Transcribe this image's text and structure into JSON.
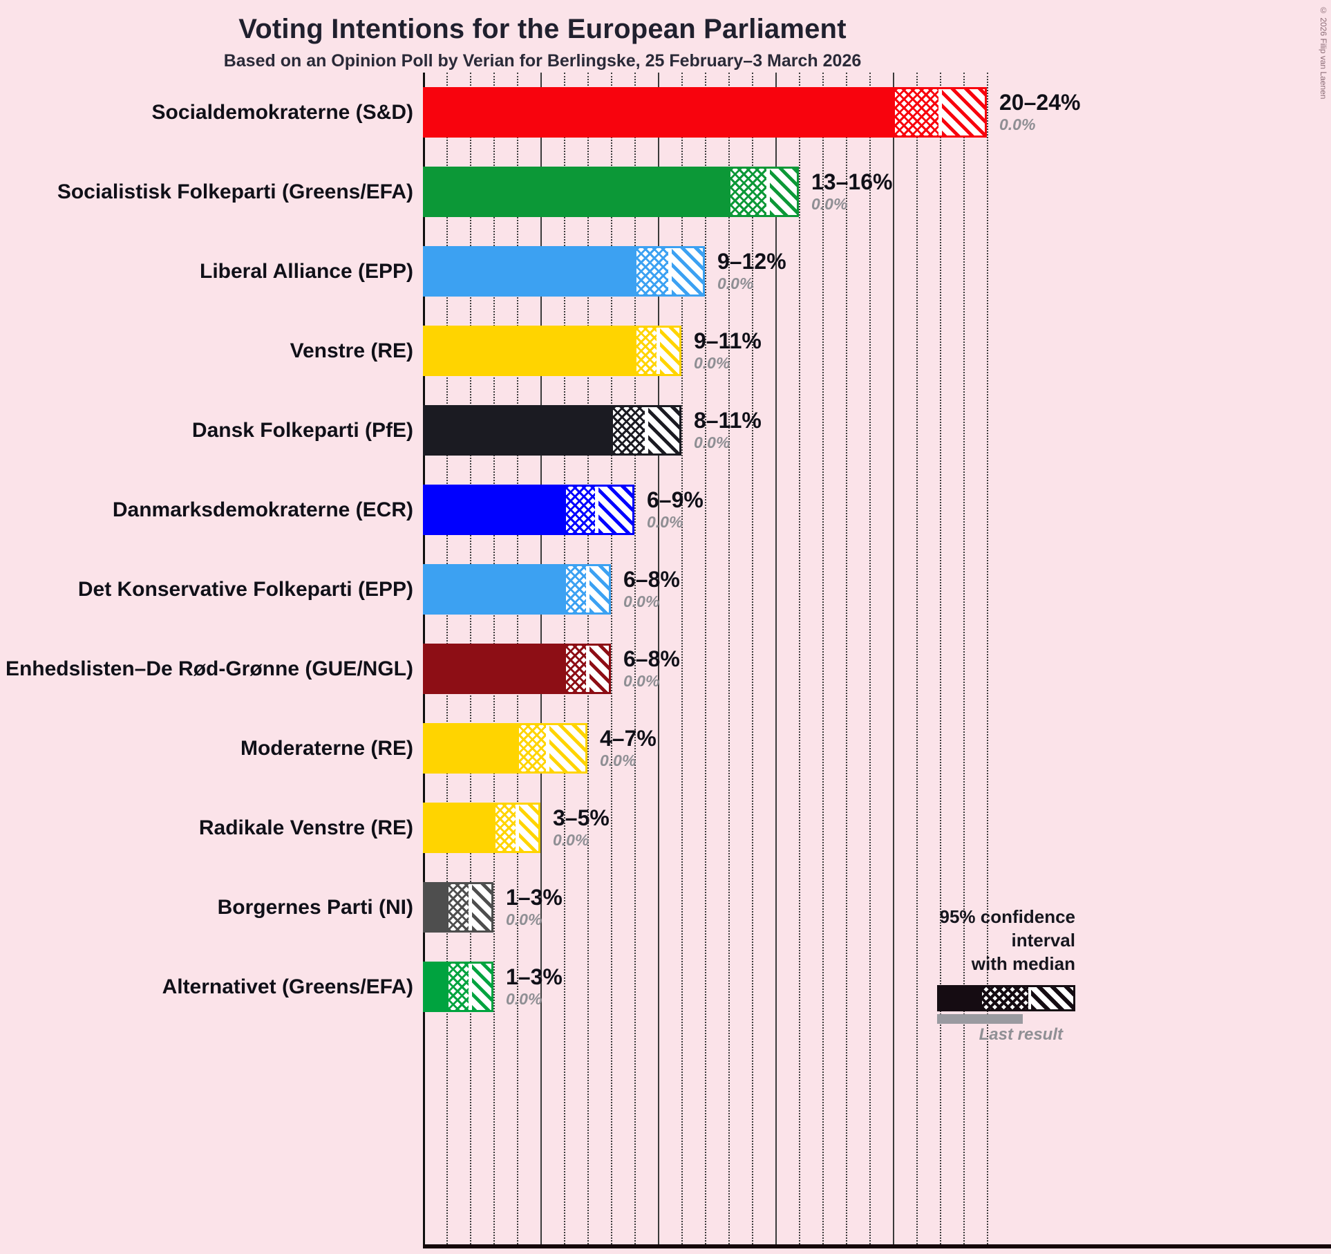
{
  "title": "Voting Intentions for the European Parliament",
  "subtitle": "Based on an Opinion Poll by Verian for Berlingske, 25 February–3 March 2026",
  "copyright": "© 2026 Filip van Laenen",
  "legend": {
    "ci_line1": "95% confidence interval",
    "ci_line2": "with median",
    "last_result": "Last result"
  },
  "chart_data": {
    "type": "bar",
    "title": "Voting Intentions for the European Parliament",
    "subtitle": "Based on an Opinion Poll by Verian for Berlingske, 25 February–3 March 2026",
    "unit": "%",
    "xlim": [
      0,
      24
    ],
    "gridline_step": 1,
    "major_gridline_step": 5,
    "orientation": "horizontal",
    "note": "Bars show 95% confidence interval with median; solid = lower bound, crosshatch = lower bound to median, diagonal = median to upper bound",
    "parties": [
      {
        "label": "Socialdemokraterne (S&D)",
        "low": 20,
        "median": 22,
        "high": 24,
        "range_label": "20–24%",
        "last_result": 0.0,
        "last_result_label": "0.0%",
        "color": "#F8030D"
      },
      {
        "label": "Socialistisk Folkeparti (Greens/EFA)",
        "low": 13,
        "median": 14.7,
        "high": 16,
        "range_label": "13–16%",
        "last_result": 0.0,
        "last_result_label": "0.0%",
        "color": "#0C9837"
      },
      {
        "label": "Liberal Alliance (EPP)",
        "low": 9,
        "median": 10.5,
        "high": 12,
        "range_label": "9–12%",
        "last_result": 0.0,
        "last_result_label": "0.0%",
        "color": "#3CA1F2"
      },
      {
        "label": "Venstre (RE)",
        "low": 9,
        "median": 10,
        "high": 11,
        "range_label": "9–11%",
        "last_result": 0.0,
        "last_result_label": "0.0%",
        "color": "#FFD400"
      },
      {
        "label": "Dansk Folkeparti (PfE)",
        "low": 8,
        "median": 9.5,
        "high": 11,
        "range_label": "8–11%",
        "last_result": 0.0,
        "last_result_label": "0.0%",
        "color": "#1B1B22"
      },
      {
        "label": "Danmarksdemokraterne (ECR)",
        "low": 6,
        "median": 7.4,
        "high": 9,
        "range_label": "6–9%",
        "last_result": 0.0,
        "last_result_label": "0.0%",
        "color": "#0000FF"
      },
      {
        "label": "Det Konservative Folkeparti (EPP)",
        "low": 6,
        "median": 7,
        "high": 8,
        "range_label": "6–8%",
        "last_result": 0.0,
        "last_result_label": "0.0%",
        "color": "#3CA1F2"
      },
      {
        "label": "Enhedslisten–De Rød-Grønne (GUE/NGL)",
        "low": 6,
        "median": 7,
        "high": 8,
        "range_label": "6–8%",
        "last_result": 0.0,
        "last_result_label": "0.0%",
        "color": "#8D0E15"
      },
      {
        "label": "Moderaterne (RE)",
        "low": 4,
        "median": 5.3,
        "high": 7,
        "range_label": "4–7%",
        "last_result": 0.0,
        "last_result_label": "0.0%",
        "color": "#FFD400"
      },
      {
        "label": "Radikale Venstre (RE)",
        "low": 3,
        "median": 4,
        "high": 5,
        "range_label": "3–5%",
        "last_result": 0.0,
        "last_result_label": "0.0%",
        "color": "#FFD400"
      },
      {
        "label": "Borgernes Parti (NI)",
        "low": 1,
        "median": 2,
        "high": 3,
        "range_label": "1–3%",
        "last_result": 0.0,
        "last_result_label": "0.0%",
        "color": "#4E4E4E"
      },
      {
        "label": "Alternativet (Greens/EFA)",
        "low": 1,
        "median": 2,
        "high": 3,
        "range_label": "1–3%",
        "last_result": 0.0,
        "last_result_label": "0.0%",
        "color": "#00A33F"
      }
    ]
  }
}
